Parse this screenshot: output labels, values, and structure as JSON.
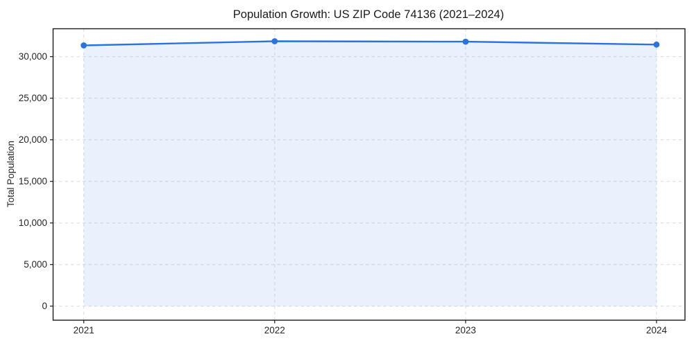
{
  "chart_data": {
    "type": "line",
    "title": "Population Growth: US ZIP Code 74136 (2021–2024)",
    "ylabel": "Total Population",
    "xlabel": "",
    "x": [
      "2021",
      "2022",
      "2023",
      "2024"
    ],
    "series": [
      {
        "name": "Total Population",
        "values": [
          31350,
          31850,
          31800,
          31450
        ]
      }
    ],
    "ylim": [
      0,
      33400
    ],
    "yticks": [
      0,
      5000,
      10000,
      15000,
      20000,
      25000,
      30000
    ],
    "ytick_labels": [
      "0",
      "5,000",
      "10,000",
      "15,000",
      "20,000",
      "25,000",
      "30,000"
    ],
    "xtick_labels": [
      "2021",
      "2022",
      "2023",
      "2024"
    ],
    "grid": "dashed, horizontal at y-ticks and vertical at years",
    "legend": false,
    "marker": "circle",
    "area_fill": true,
    "colors": {
      "line": "#2a72de",
      "marker": "#2a72de",
      "fill": "#2a72de",
      "fill_opacity": 0.1,
      "grid": "#dbdbdb",
      "axis": "#1a1a1a",
      "text": "#262626",
      "background": "#ffffff"
    }
  }
}
